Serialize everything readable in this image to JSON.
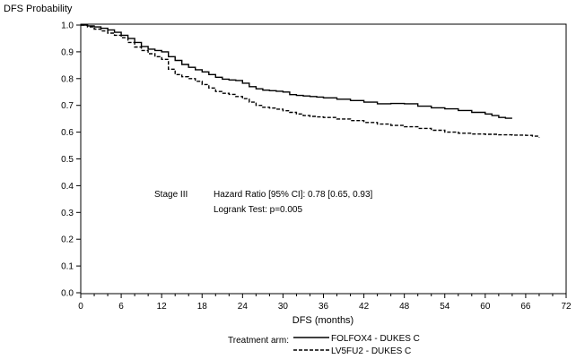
{
  "chart_data": {
    "type": "line",
    "ylabel": "DFS Probability",
    "xlabel": "DFS (months)",
    "xlim": [
      0,
      72
    ],
    "ylim": [
      0.0,
      1.0
    ],
    "xticks": [
      0,
      6,
      12,
      18,
      24,
      30,
      36,
      42,
      48,
      54,
      60,
      66,
      72
    ],
    "yticks": [
      "0.0",
      "0.1",
      "0.2",
      "0.3",
      "0.4",
      "0.5",
      "0.6",
      "0.7",
      "0.8",
      "0.9",
      "1.0"
    ],
    "grid": false,
    "annotation": {
      "stage": "Stage III",
      "hazard_ratio": "Hazard Ratio [95% CI]: 0.78 [0.65, 0.93]",
      "logrank": "Logrank Test: p=0.005"
    },
    "legend": {
      "title": "Treatment arm:",
      "placement": "bottom-center"
    },
    "series": [
      {
        "name": "FOLFOX4 - DUKES C",
        "style": "solid",
        "points": [
          [
            0,
            1.0
          ],
          [
            1,
            0.997
          ],
          [
            2,
            0.993
          ],
          [
            3,
            0.988
          ],
          [
            4,
            0.982
          ],
          [
            5,
            0.973
          ],
          [
            6,
            0.962
          ],
          [
            7,
            0.95
          ],
          [
            8,
            0.935
          ],
          [
            9,
            0.92
          ],
          [
            10,
            0.91
          ],
          [
            11,
            0.905
          ],
          [
            12,
            0.9
          ],
          [
            13,
            0.882
          ],
          [
            14,
            0.868
          ],
          [
            15,
            0.853
          ],
          [
            16,
            0.842
          ],
          [
            17,
            0.833
          ],
          [
            18,
            0.825
          ],
          [
            19,
            0.815
          ],
          [
            20,
            0.805
          ],
          [
            21,
            0.798
          ],
          [
            22,
            0.795
          ],
          [
            23,
            0.793
          ],
          [
            24,
            0.783
          ],
          [
            25,
            0.77
          ],
          [
            26,
            0.762
          ],
          [
            27,
            0.757
          ],
          [
            28,
            0.755
          ],
          [
            29,
            0.753
          ],
          [
            30,
            0.75
          ],
          [
            31,
            0.74
          ],
          [
            32,
            0.737
          ],
          [
            33,
            0.735
          ],
          [
            34,
            0.733
          ],
          [
            35,
            0.731
          ],
          [
            36,
            0.728
          ],
          [
            38,
            0.723
          ],
          [
            40,
            0.718
          ],
          [
            42,
            0.712
          ],
          [
            44,
            0.706
          ],
          [
            46,
            0.707
          ],
          [
            48,
            0.706
          ],
          [
            50,
            0.697
          ],
          [
            52,
            0.691
          ],
          [
            54,
            0.687
          ],
          [
            56,
            0.681
          ],
          [
            58,
            0.674
          ],
          [
            60,
            0.668
          ],
          [
            61,
            0.662
          ],
          [
            62,
            0.655
          ],
          [
            63,
            0.652
          ],
          [
            64,
            0.652
          ]
        ]
      },
      {
        "name": "LV5FU2 - DUKES C",
        "style": "dashed",
        "points": [
          [
            0,
            1.0
          ],
          [
            1,
            0.993
          ],
          [
            2,
            0.985
          ],
          [
            3,
            0.978
          ],
          [
            4,
            0.97
          ],
          [
            5,
            0.962
          ],
          [
            6,
            0.953
          ],
          [
            7,
            0.935
          ],
          [
            8,
            0.918
          ],
          [
            9,
            0.905
          ],
          [
            10,
            0.893
          ],
          [
            11,
            0.882
          ],
          [
            12,
            0.872
          ],
          [
            13,
            0.835
          ],
          [
            14,
            0.815
          ],
          [
            15,
            0.807
          ],
          [
            16,
            0.8
          ],
          [
            17,
            0.79
          ],
          [
            18,
            0.778
          ],
          [
            19,
            0.765
          ],
          [
            20,
            0.752
          ],
          [
            21,
            0.745
          ],
          [
            22,
            0.741
          ],
          [
            23,
            0.733
          ],
          [
            24,
            0.725
          ],
          [
            25,
            0.712
          ],
          [
            26,
            0.7
          ],
          [
            27,
            0.693
          ],
          [
            28,
            0.69
          ],
          [
            29,
            0.686
          ],
          [
            30,
            0.68
          ],
          [
            31,
            0.674
          ],
          [
            32,
            0.668
          ],
          [
            33,
            0.662
          ],
          [
            34,
            0.659
          ],
          [
            35,
            0.657
          ],
          [
            36,
            0.655
          ],
          [
            38,
            0.649
          ],
          [
            40,
            0.643
          ],
          [
            42,
            0.636
          ],
          [
            44,
            0.63
          ],
          [
            46,
            0.625
          ],
          [
            48,
            0.62
          ],
          [
            50,
            0.614
          ],
          [
            52,
            0.607
          ],
          [
            54,
            0.6
          ],
          [
            56,
            0.596
          ],
          [
            58,
            0.593
          ],
          [
            60,
            0.592
          ],
          [
            62,
            0.59
          ],
          [
            64,
            0.589
          ],
          [
            66,
            0.588
          ],
          [
            67,
            0.585
          ],
          [
            68,
            0.58
          ]
        ]
      }
    ]
  }
}
